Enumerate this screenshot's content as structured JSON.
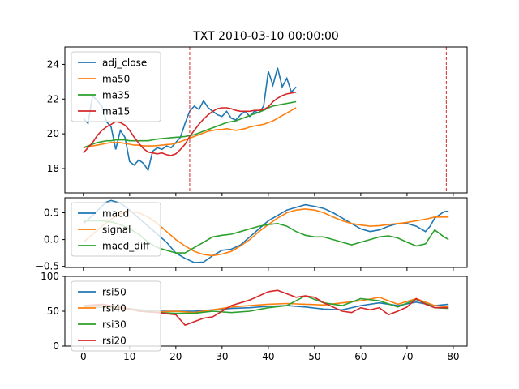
{
  "chart_data": [
    {
      "type": "line",
      "title": "TXT 2010-03-10 00:00:00",
      "xlim": [
        -4,
        83
      ],
      "ylim": [
        16.6,
        25
      ],
      "yticks": [
        18,
        20,
        22,
        24
      ],
      "xticks": [
        0,
        10,
        20,
        30,
        40,
        50,
        60,
        70,
        80
      ],
      "show_xtick_labels": false,
      "vlines": {
        "x": [
          23,
          78.5
        ],
        "color": "#d62728",
        "style": "dashed"
      },
      "legend": "upper-left",
      "series": [
        {
          "name": "adj_close",
          "color": "#1f77b4",
          "x": [
            0,
            1,
            2,
            3,
            4,
            5,
            6,
            7,
            8,
            9,
            10,
            11,
            12,
            13,
            14,
            15,
            16,
            17,
            18,
            19,
            20,
            21,
            22,
            23,
            24,
            25,
            26,
            27,
            28,
            29,
            30,
            31,
            32,
            33,
            34,
            35,
            36,
            37,
            38,
            39,
            40,
            41,
            42,
            43,
            44,
            45,
            46
          ],
          "values": [
            20.9,
            20.6,
            22.2,
            21.9,
            21.6,
            20.7,
            20.4,
            19.1,
            20.2,
            19.8,
            18.4,
            18.2,
            18.5,
            18.3,
            17.9,
            19.0,
            19.2,
            19.1,
            19.3,
            19.2,
            19.5,
            19.8,
            20.6,
            21.3,
            21.6,
            21.4,
            21.9,
            21.5,
            21.3,
            21.1,
            21.0,
            21.3,
            20.9,
            20.8,
            21.1,
            21.3,
            21.0,
            21.3,
            21.2,
            21.6,
            23.6,
            22.8,
            23.8,
            22.7,
            23.2,
            22.4,
            22.7
          ]
        },
        {
          "name": "ma50",
          "color": "#ff7f0e",
          "x": [
            0,
            1,
            2,
            3,
            4,
            5,
            6,
            7,
            8,
            9,
            10,
            11,
            12,
            13,
            14,
            15,
            16,
            17,
            18,
            19,
            20,
            21,
            22,
            23,
            24,
            25,
            26,
            27,
            28,
            29,
            30,
            31,
            32,
            33,
            34,
            35,
            36,
            37,
            38,
            39,
            40,
            41,
            42,
            43,
            44,
            45,
            46
          ],
          "values": [
            19.2,
            19.25,
            19.3,
            19.35,
            19.4,
            19.45,
            19.5,
            19.5,
            19.5,
            19.45,
            19.4,
            19.35,
            19.35,
            19.3,
            19.3,
            19.3,
            19.32,
            19.35,
            19.38,
            19.4,
            19.45,
            19.55,
            19.65,
            19.75,
            19.85,
            19.95,
            20.05,
            20.15,
            20.2,
            20.25,
            20.25,
            20.3,
            20.25,
            20.2,
            20.25,
            20.3,
            20.4,
            20.45,
            20.5,
            20.55,
            20.65,
            20.75,
            20.9,
            21.05,
            21.2,
            21.35,
            21.5
          ]
        },
        {
          "name": "ma35",
          "color": "#2ca02c",
          "x": [
            0,
            1,
            2,
            3,
            4,
            5,
            6,
            7,
            8,
            9,
            10,
            11,
            12,
            13,
            14,
            15,
            16,
            17,
            18,
            19,
            20,
            21,
            22,
            23,
            24,
            25,
            26,
            27,
            28,
            29,
            30,
            31,
            32,
            33,
            34,
            35,
            36,
            37,
            38,
            39,
            40,
            41,
            42,
            43,
            44,
            45,
            46
          ],
          "values": [
            19.2,
            19.3,
            19.4,
            19.5,
            19.55,
            19.6,
            19.6,
            19.65,
            19.65,
            19.65,
            19.6,
            19.6,
            19.6,
            19.6,
            19.6,
            19.65,
            19.7,
            19.72,
            19.75,
            19.78,
            19.8,
            19.82,
            19.85,
            19.9,
            19.95,
            20.05,
            20.15,
            20.25,
            20.35,
            20.45,
            20.55,
            20.65,
            20.7,
            20.75,
            20.85,
            20.95,
            21.05,
            21.15,
            21.25,
            21.35,
            21.5,
            21.6,
            21.65,
            21.7,
            21.75,
            21.8,
            21.85
          ]
        },
        {
          "name": "ma15",
          "color": "#d62728",
          "x": [
            0,
            1,
            2,
            3,
            4,
            5,
            6,
            7,
            8,
            9,
            10,
            11,
            12,
            13,
            14,
            15,
            16,
            17,
            18,
            19,
            20,
            21,
            22,
            23,
            24,
            25,
            26,
            27,
            28,
            29,
            30,
            31,
            32,
            33,
            34,
            35,
            36,
            37,
            38,
            39,
            40,
            41,
            42,
            43,
            44,
            45,
            46
          ],
          "values": [
            18.9,
            19.2,
            19.5,
            19.9,
            20.2,
            20.4,
            20.55,
            20.7,
            20.65,
            20.5,
            20.2,
            19.8,
            19.45,
            19.15,
            18.95,
            18.9,
            18.85,
            18.9,
            18.8,
            18.75,
            18.85,
            19.1,
            19.4,
            19.85,
            20.2,
            20.55,
            20.85,
            21.1,
            21.3,
            21.45,
            21.5,
            21.5,
            21.45,
            21.35,
            21.3,
            21.3,
            21.3,
            21.35,
            21.35,
            21.4,
            21.55,
            21.85,
            22.05,
            22.2,
            22.3,
            22.35,
            22.4
          ]
        }
      ]
    },
    {
      "type": "line",
      "xlim": [
        -4,
        83
      ],
      "ylim": [
        -0.52,
        0.78
      ],
      "yticks": [
        -0.5,
        0.0,
        0.5
      ],
      "ytick_labels": [
        "−0.5",
        "0.0",
        "0.5"
      ],
      "xticks": [
        0,
        10,
        20,
        30,
        40,
        50,
        60,
        70,
        80
      ],
      "show_xtick_labels": false,
      "legend": "upper-left",
      "series": [
        {
          "name": "macd",
          "color": "#1f77b4",
          "x": [
            0,
            2,
            4,
            5,
            6,
            8,
            10,
            12,
            14,
            16,
            18,
            20,
            22,
            24,
            26,
            28,
            30,
            32,
            34,
            36,
            38,
            40,
            42,
            44,
            46,
            48,
            50,
            52,
            54,
            56,
            58,
            60,
            62,
            64,
            66,
            68,
            70,
            72,
            74,
            75,
            76,
            78,
            79
          ],
          "values": [
            0.3,
            0.45,
            0.62,
            0.7,
            0.73,
            0.68,
            0.55,
            0.4,
            0.25,
            0.1,
            -0.05,
            -0.25,
            -0.35,
            -0.43,
            -0.42,
            -0.3,
            -0.2,
            -0.18,
            -0.1,
            0.05,
            0.2,
            0.35,
            0.45,
            0.55,
            0.6,
            0.65,
            0.62,
            0.58,
            0.5,
            0.4,
            0.3,
            0.2,
            0.15,
            0.18,
            0.25,
            0.3,
            0.3,
            0.25,
            0.15,
            0.25,
            0.4,
            0.52,
            0.53
          ]
        },
        {
          "name": "signal",
          "color": "#ff7f0e",
          "x": [
            0,
            2,
            4,
            6,
            8,
            10,
            12,
            14,
            16,
            18,
            20,
            22,
            24,
            26,
            28,
            30,
            32,
            34,
            36,
            38,
            40,
            42,
            44,
            46,
            48,
            50,
            52,
            54,
            56,
            58,
            60,
            62,
            64,
            66,
            68,
            70,
            72,
            74,
            76,
            78,
            79
          ],
          "values": [
            -0.05,
            0.1,
            0.25,
            0.38,
            0.48,
            0.52,
            0.5,
            0.42,
            0.3,
            0.15,
            0.0,
            -0.12,
            -0.22,
            -0.28,
            -0.3,
            -0.27,
            -0.22,
            -0.12,
            0.0,
            0.15,
            0.28,
            0.4,
            0.5,
            0.55,
            0.57,
            0.55,
            0.5,
            0.42,
            0.35,
            0.3,
            0.27,
            0.25,
            0.26,
            0.28,
            0.3,
            0.32,
            0.35,
            0.38,
            0.42,
            0.42,
            0.42
          ]
        },
        {
          "name": "macd_diff",
          "color": "#2ca02c",
          "x": [
            0,
            2,
            4,
            6,
            8,
            10,
            12,
            14,
            16,
            18,
            20,
            22,
            24,
            26,
            28,
            30,
            32,
            34,
            36,
            38,
            40,
            42,
            44,
            46,
            48,
            50,
            52,
            54,
            56,
            58,
            60,
            62,
            64,
            66,
            68,
            70,
            72,
            74,
            76,
            78,
            79
          ],
          "values": [
            0.35,
            0.35,
            0.35,
            0.33,
            0.28,
            0.2,
            0.1,
            -0.05,
            -0.15,
            -0.2,
            -0.25,
            -0.25,
            -0.15,
            -0.05,
            0.05,
            0.08,
            0.1,
            0.15,
            0.2,
            0.25,
            0.28,
            0.3,
            0.25,
            0.15,
            0.08,
            0.05,
            0.05,
            0.0,
            -0.05,
            -0.1,
            -0.05,
            0.0,
            0.05,
            0.07,
            0.03,
            -0.05,
            -0.12,
            -0.08,
            0.18,
            0.05,
            0.0
          ]
        }
      ]
    },
    {
      "type": "line",
      "xlim": [
        -4,
        83
      ],
      "ylim": [
        0,
        100
      ],
      "yticks": [
        0,
        50,
        100
      ],
      "xticks": [
        0,
        10,
        20,
        30,
        40,
        50,
        60,
        70,
        80
      ],
      "show_xtick_labels": true,
      "legend": "upper-left",
      "series": [
        {
          "name": "rsi50",
          "color": "#1f77b4",
          "x": [
            0,
            4,
            8,
            12,
            16,
            20,
            24,
            28,
            32,
            36,
            40,
            44,
            48,
            52,
            56,
            60,
            64,
            68,
            72,
            76,
            79
          ],
          "values": [
            55,
            56,
            55,
            52,
            50,
            50,
            50,
            52,
            54,
            55,
            57,
            58,
            56,
            53,
            52,
            58,
            62,
            58,
            63,
            58,
            60
          ]
        },
        {
          "name": "rsi40",
          "color": "#ff7f0e",
          "x": [
            0,
            4,
            8,
            12,
            16,
            20,
            24,
            28,
            32,
            36,
            40,
            44,
            48,
            52,
            56,
            60,
            64,
            68,
            72,
            76,
            79
          ],
          "values": [
            55,
            57,
            54,
            51,
            49,
            50,
            48,
            52,
            56,
            58,
            60,
            61,
            60,
            59,
            62,
            65,
            70,
            60,
            68,
            58,
            56
          ]
        },
        {
          "name": "rsi30",
          "color": "#2ca02c",
          "x": [
            0,
            4,
            8,
            12,
            16,
            20,
            24,
            28,
            32,
            36,
            40,
            44,
            48,
            52,
            56,
            60,
            64,
            68,
            72,
            76,
            79
          ],
          "values": [
            57,
            58,
            55,
            52,
            48,
            47,
            47,
            50,
            48,
            50,
            55,
            58,
            72,
            62,
            58,
            68,
            65,
            56,
            67,
            55,
            54
          ]
        },
        {
          "name": "rsi20",
          "color": "#d62728",
          "x": [
            0,
            4,
            8,
            12,
            16,
            20,
            22,
            24,
            26,
            28,
            32,
            36,
            40,
            42,
            44,
            46,
            48,
            50,
            52,
            56,
            58,
            60,
            62,
            64,
            66,
            68,
            70,
            72,
            74,
            76,
            79
          ],
          "values": [
            58,
            60,
            56,
            50,
            48,
            45,
            30,
            35,
            40,
            42,
            58,
            66,
            78,
            80,
            75,
            70,
            72,
            70,
            62,
            50,
            48,
            55,
            52,
            55,
            45,
            50,
            56,
            68,
            60,
            55,
            55
          ]
        }
      ]
    }
  ]
}
